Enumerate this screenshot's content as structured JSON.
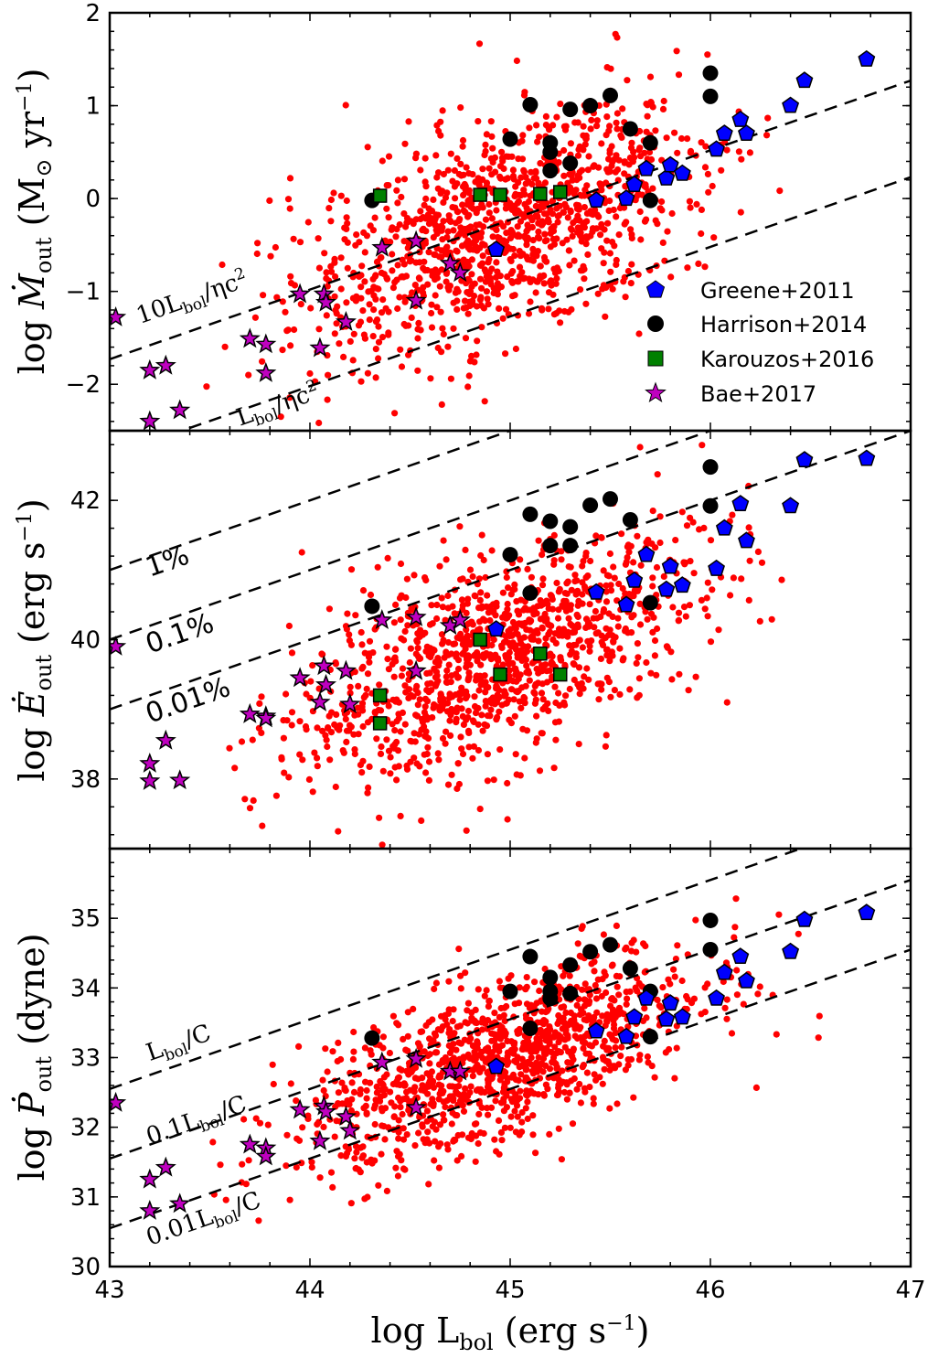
{
  "chart_data": [
    {
      "type": "scatter",
      "panel": "top",
      "ylabel": {
        "prefix": "log ",
        "sym": "Ṁ",
        "sub": "out",
        "unit_open": " (M",
        "unit_mid": "⊙",
        "unit_rest": " yr",
        "sup": "−1",
        "unit_close": ")"
      },
      "ylim": [
        -2.5,
        2.0
      ],
      "yticks": [
        -2,
        -1,
        0,
        1,
        2
      ],
      "ytick_labels": [
        "−2",
        "−1",
        "0",
        "1",
        "2"
      ],
      "xlim": [
        43,
        47
      ],
      "guides": [
        {
          "slope": 0.75,
          "intercept_at_43": -1.73
        },
        {
          "slope": 0.75,
          "intercept_at_43": -2.77
        }
      ],
      "annotations": [
        {
          "pre": "10L",
          "sub": "bol",
          "mid": "/ηc",
          "sup": "2",
          "x": 43.15,
          "y": -1.35
        },
        {
          "pre": "L",
          "sub": "bol",
          "mid": "/ηc",
          "sup": "2",
          "x": 43.65,
          "y": -2.45
        }
      ],
      "series": {
        "greene": [
          [
            44.93,
            -0.55
          ],
          [
            45.43,
            -0.02
          ],
          [
            45.58,
            0.0
          ],
          [
            45.62,
            0.15
          ],
          [
            45.68,
            0.32
          ],
          [
            45.78,
            0.22
          ],
          [
            45.8,
            0.36
          ],
          [
            45.86,
            0.27
          ],
          [
            46.03,
            0.53
          ],
          [
            46.07,
            0.7
          ],
          [
            46.15,
            0.85
          ],
          [
            46.18,
            0.7
          ],
          [
            46.4,
            1.0
          ],
          [
            46.47,
            1.27
          ],
          [
            46.78,
            1.5
          ]
        ],
        "harrison": [
          [
            44.31,
            -0.02
          ],
          [
            45.0,
            0.64
          ],
          [
            45.1,
            1.01
          ],
          [
            45.2,
            0.6
          ],
          [
            45.2,
            0.5
          ],
          [
            45.2,
            0.3
          ],
          [
            45.3,
            0.96
          ],
          [
            45.3,
            0.38
          ],
          [
            45.4,
            1.0
          ],
          [
            45.5,
            1.11
          ],
          [
            45.6,
            0.75
          ],
          [
            45.7,
            0.6
          ],
          [
            45.7,
            -0.02
          ],
          [
            46.0,
            1.35
          ],
          [
            46.0,
            1.1
          ]
        ],
        "karouzos": [
          [
            44.35,
            0.03
          ],
          [
            44.85,
            0.04
          ],
          [
            44.95,
            0.04
          ],
          [
            45.15,
            0.05
          ],
          [
            45.25,
            0.07
          ]
        ],
        "bae": [
          [
            43.03,
            -1.28
          ],
          [
            43.2,
            -1.85
          ],
          [
            43.2,
            -2.4
          ],
          [
            43.28,
            -1.8
          ],
          [
            43.35,
            -2.28
          ],
          [
            43.7,
            -1.51
          ],
          [
            43.78,
            -1.57
          ],
          [
            43.78,
            -1.88
          ],
          [
            43.95,
            -1.03
          ],
          [
            44.05,
            -1.61
          ],
          [
            44.07,
            -1.03
          ],
          [
            44.08,
            -1.12
          ],
          [
            44.18,
            -1.33
          ],
          [
            44.36,
            -0.53
          ],
          [
            44.53,
            -0.46
          ],
          [
            44.53,
            -1.1
          ],
          [
            44.7,
            -0.7
          ],
          [
            44.75,
            -0.8
          ]
        ]
      },
      "legend": [
        "Greene+2011",
        "Harrison+2014",
        "Karouzos+2016",
        "Bae+2017"
      ],
      "cloud": {
        "center_x": 44.95,
        "center_y": -0.35,
        "spread": 0.55,
        "x_range": [
          43.4,
          46.6
        ],
        "n": 1200
      }
    },
    {
      "type": "scatter",
      "panel": "middle",
      "ylabel": {
        "prefix": "log ",
        "sym": "Ė",
        "sub": "out",
        "unit_open": " (erg s",
        "sup": "−1",
        "unit_close": ")"
      },
      "ylim": [
        37.0,
        43.0
      ],
      "yticks": [
        38,
        40,
        42
      ],
      "ytick_labels": [
        "38",
        "40",
        "42"
      ],
      "xlim": [
        43,
        47
      ],
      "guides": [
        {
          "slope": 1.0,
          "intercept_at_43": 41.0
        },
        {
          "slope": 1.0,
          "intercept_at_43": 40.0
        },
        {
          "slope": 1.0,
          "intercept_at_43": 39.0
        }
      ],
      "annotations": [
        {
          "text": "1%",
          "x": 43.2,
          "y": 40.9
        },
        {
          "text": "0.1%",
          "x": 43.2,
          "y": 39.8
        },
        {
          "text": "0.01%",
          "x": 43.2,
          "y": 38.8
        }
      ],
      "series": {
        "greene": [
          [
            44.93,
            40.15
          ],
          [
            45.43,
            40.68
          ],
          [
            45.58,
            40.5
          ],
          [
            45.62,
            40.85
          ],
          [
            45.68,
            41.22
          ],
          [
            45.78,
            40.72
          ],
          [
            45.8,
            41.05
          ],
          [
            45.86,
            40.78
          ],
          [
            46.03,
            41.02
          ],
          [
            46.07,
            41.6
          ],
          [
            46.15,
            41.95
          ],
          [
            46.18,
            41.42
          ],
          [
            46.4,
            41.92
          ],
          [
            46.47,
            42.58
          ],
          [
            46.78,
            42.6
          ]
        ],
        "harrison": [
          [
            44.31,
            40.48
          ],
          [
            45.0,
            41.22
          ],
          [
            45.1,
            41.8
          ],
          [
            45.1,
            40.67
          ],
          [
            45.2,
            41.7
          ],
          [
            45.2,
            41.35
          ],
          [
            45.3,
            41.62
          ],
          [
            45.3,
            41.35
          ],
          [
            45.4,
            41.93
          ],
          [
            45.5,
            42.02
          ],
          [
            45.6,
            41.72
          ],
          [
            45.7,
            40.53
          ],
          [
            46.0,
            42.48
          ],
          [
            46.0,
            41.92
          ]
        ],
        "karouzos": [
          [
            44.35,
            39.2
          ],
          [
            44.35,
            38.8
          ],
          [
            44.85,
            40.0
          ],
          [
            44.95,
            39.5
          ],
          [
            45.15,
            39.8
          ],
          [
            45.25,
            39.5
          ]
        ],
        "bae": [
          [
            43.03,
            39.9
          ],
          [
            43.2,
            38.22
          ],
          [
            43.2,
            37.97
          ],
          [
            43.28,
            38.55
          ],
          [
            43.35,
            37.98
          ],
          [
            43.7,
            38.93
          ],
          [
            43.78,
            38.9
          ],
          [
            43.78,
            38.87
          ],
          [
            43.95,
            39.45
          ],
          [
            44.05,
            39.1
          ],
          [
            44.07,
            39.62
          ],
          [
            44.08,
            39.35
          ],
          [
            44.18,
            39.55
          ],
          [
            44.2,
            39.07
          ],
          [
            44.36,
            40.28
          ],
          [
            44.53,
            40.32
          ],
          [
            44.53,
            39.55
          ],
          [
            44.7,
            40.2
          ],
          [
            44.75,
            40.28
          ]
        ]
      },
      "cloud": {
        "center_x": 44.95,
        "center_y": 39.75,
        "spread": 0.7,
        "x_range": [
          43.5,
          46.6
        ],
        "n": 1200
      }
    },
    {
      "type": "scatter",
      "panel": "bottom",
      "ylabel": {
        "prefix": "log ",
        "sym": "Ṗ",
        "sub": "out",
        "unit_open": " (dyne)"
      },
      "xlabel": {
        "prefix": "log L",
        "sub": "bol",
        "unit_open": " (erg s",
        "sup": "−1",
        "unit_close": ")"
      },
      "ylim": [
        30.0,
        36.0
      ],
      "yticks": [
        30,
        31,
        32,
        33,
        34,
        35
      ],
      "ytick_labels": [
        "30",
        "31",
        "32",
        "33",
        "34",
        "35"
      ],
      "xlim": [
        43,
        47
      ],
      "xticks": [
        43,
        44,
        45,
        46,
        47
      ],
      "xtick_labels": [
        "43",
        "44",
        "45",
        "46",
        "47"
      ],
      "guides": [
        {
          "slope": 1.0,
          "intercept_at_43": 32.55
        },
        {
          "slope": 1.0,
          "intercept_at_43": 31.55
        },
        {
          "slope": 1.0,
          "intercept_at_43": 30.55
        }
      ],
      "annotations": [
        {
          "pre": "L",
          "sub": "bol",
          "mid": "/C",
          "x": 43.2,
          "y": 32.95
        },
        {
          "pre": "0.1L",
          "sub": "bol",
          "mid": "/C",
          "x": 43.2,
          "y": 31.75
        },
        {
          "pre": "0.01L",
          "sub": "bol",
          "mid": "/C",
          "x": 43.2,
          "y": 30.3
        }
      ],
      "series": {
        "greene": [
          [
            44.93,
            32.87
          ],
          [
            45.43,
            33.38
          ],
          [
            45.58,
            33.3
          ],
          [
            45.62,
            33.58
          ],
          [
            45.68,
            33.85
          ],
          [
            45.78,
            33.55
          ],
          [
            45.8,
            33.78
          ],
          [
            45.86,
            33.58
          ],
          [
            46.03,
            33.85
          ],
          [
            46.07,
            34.22
          ],
          [
            46.15,
            34.45
          ],
          [
            46.18,
            34.1
          ],
          [
            46.4,
            34.52
          ],
          [
            46.47,
            34.98
          ],
          [
            46.78,
            35.08
          ]
        ],
        "harrison": [
          [
            44.31,
            33.28
          ],
          [
            45.0,
            33.95
          ],
          [
            45.1,
            34.45
          ],
          [
            45.1,
            33.42
          ],
          [
            45.2,
            34.15
          ],
          [
            45.2,
            33.95
          ],
          [
            45.2,
            33.85
          ],
          [
            45.3,
            34.33
          ],
          [
            45.3,
            33.92
          ],
          [
            45.4,
            34.52
          ],
          [
            45.5,
            34.62
          ],
          [
            45.6,
            34.28
          ],
          [
            45.7,
            33.95
          ],
          [
            45.7,
            33.3
          ],
          [
            46.0,
            34.97
          ],
          [
            46.0,
            34.55
          ]
        ],
        "karouzos": [],
        "bae": [
          [
            43.03,
            32.35
          ],
          [
            43.2,
            31.25
          ],
          [
            43.2,
            30.8
          ],
          [
            43.28,
            31.42
          ],
          [
            43.35,
            30.9
          ],
          [
            43.7,
            31.75
          ],
          [
            43.78,
            31.7
          ],
          [
            43.78,
            31.58
          ],
          [
            43.95,
            32.25
          ],
          [
            44.05,
            31.8
          ],
          [
            44.07,
            32.3
          ],
          [
            44.08,
            32.22
          ],
          [
            44.18,
            32.15
          ],
          [
            44.2,
            31.95
          ],
          [
            44.36,
            32.93
          ],
          [
            44.53,
            32.98
          ],
          [
            44.53,
            32.28
          ],
          [
            44.7,
            32.8
          ],
          [
            44.75,
            32.8
          ]
        ]
      },
      "cloud": {
        "center_x": 44.95,
        "center_y": 32.95,
        "spread": 0.55,
        "x_range": [
          43.5,
          46.6
        ],
        "n": 1200
      }
    }
  ],
  "colors": {
    "cloud": "#ff0000",
    "greene": "#0000ff",
    "harrison": "#000000",
    "karouzos": "#008000",
    "bae": "#bf00bf"
  }
}
